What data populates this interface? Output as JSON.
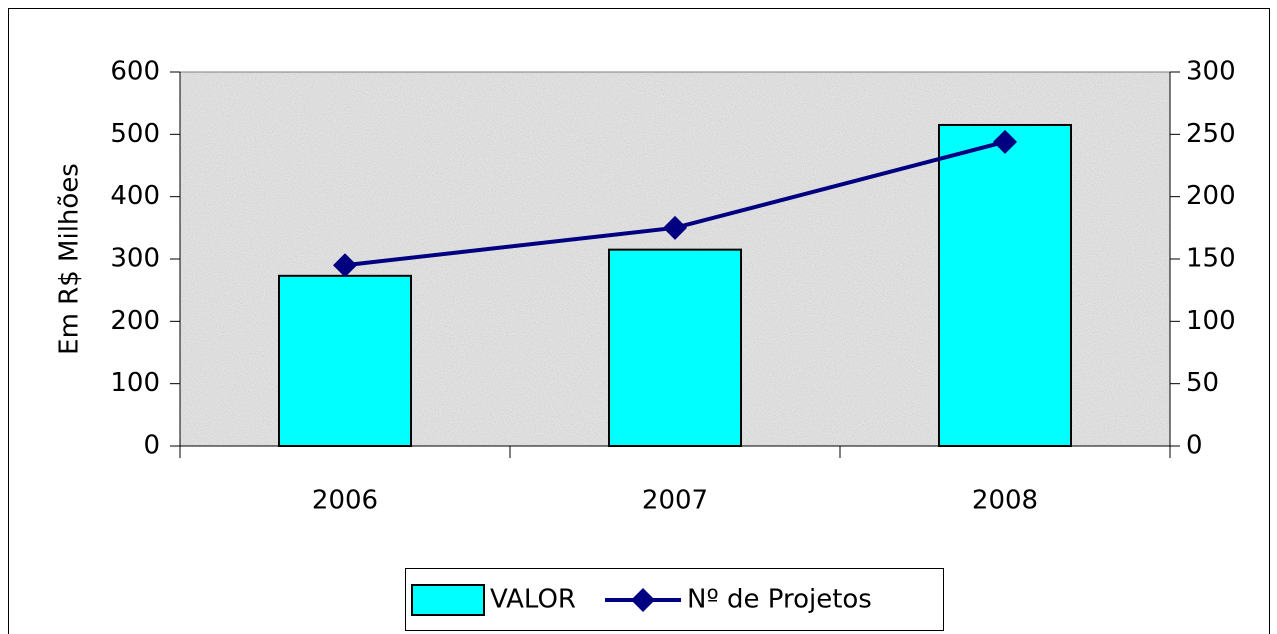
{
  "chart_data": {
    "type": "bar",
    "y_label": "Em R$ Milhões",
    "categories": [
      "2006",
      "2007",
      "2008"
    ],
    "series": [
      {
        "name": "VALOR",
        "type": "bar",
        "color": "#00ffff",
        "values": [
          273,
          315,
          515
        ]
      },
      {
        "name": "Nº de Projetos",
        "type": "line",
        "axis": "y2",
        "color": "#000080",
        "values": [
          145,
          175,
          244
        ]
      }
    ],
    "ylim": [
      0,
      600
    ],
    "yticks": [
      0,
      100,
      200,
      300,
      400,
      500,
      600
    ],
    "y2lim": [
      0,
      300
    ],
    "y2ticks": [
      0,
      50,
      100,
      150,
      200,
      250,
      300
    ],
    "legend": "bottom",
    "grid": false
  }
}
